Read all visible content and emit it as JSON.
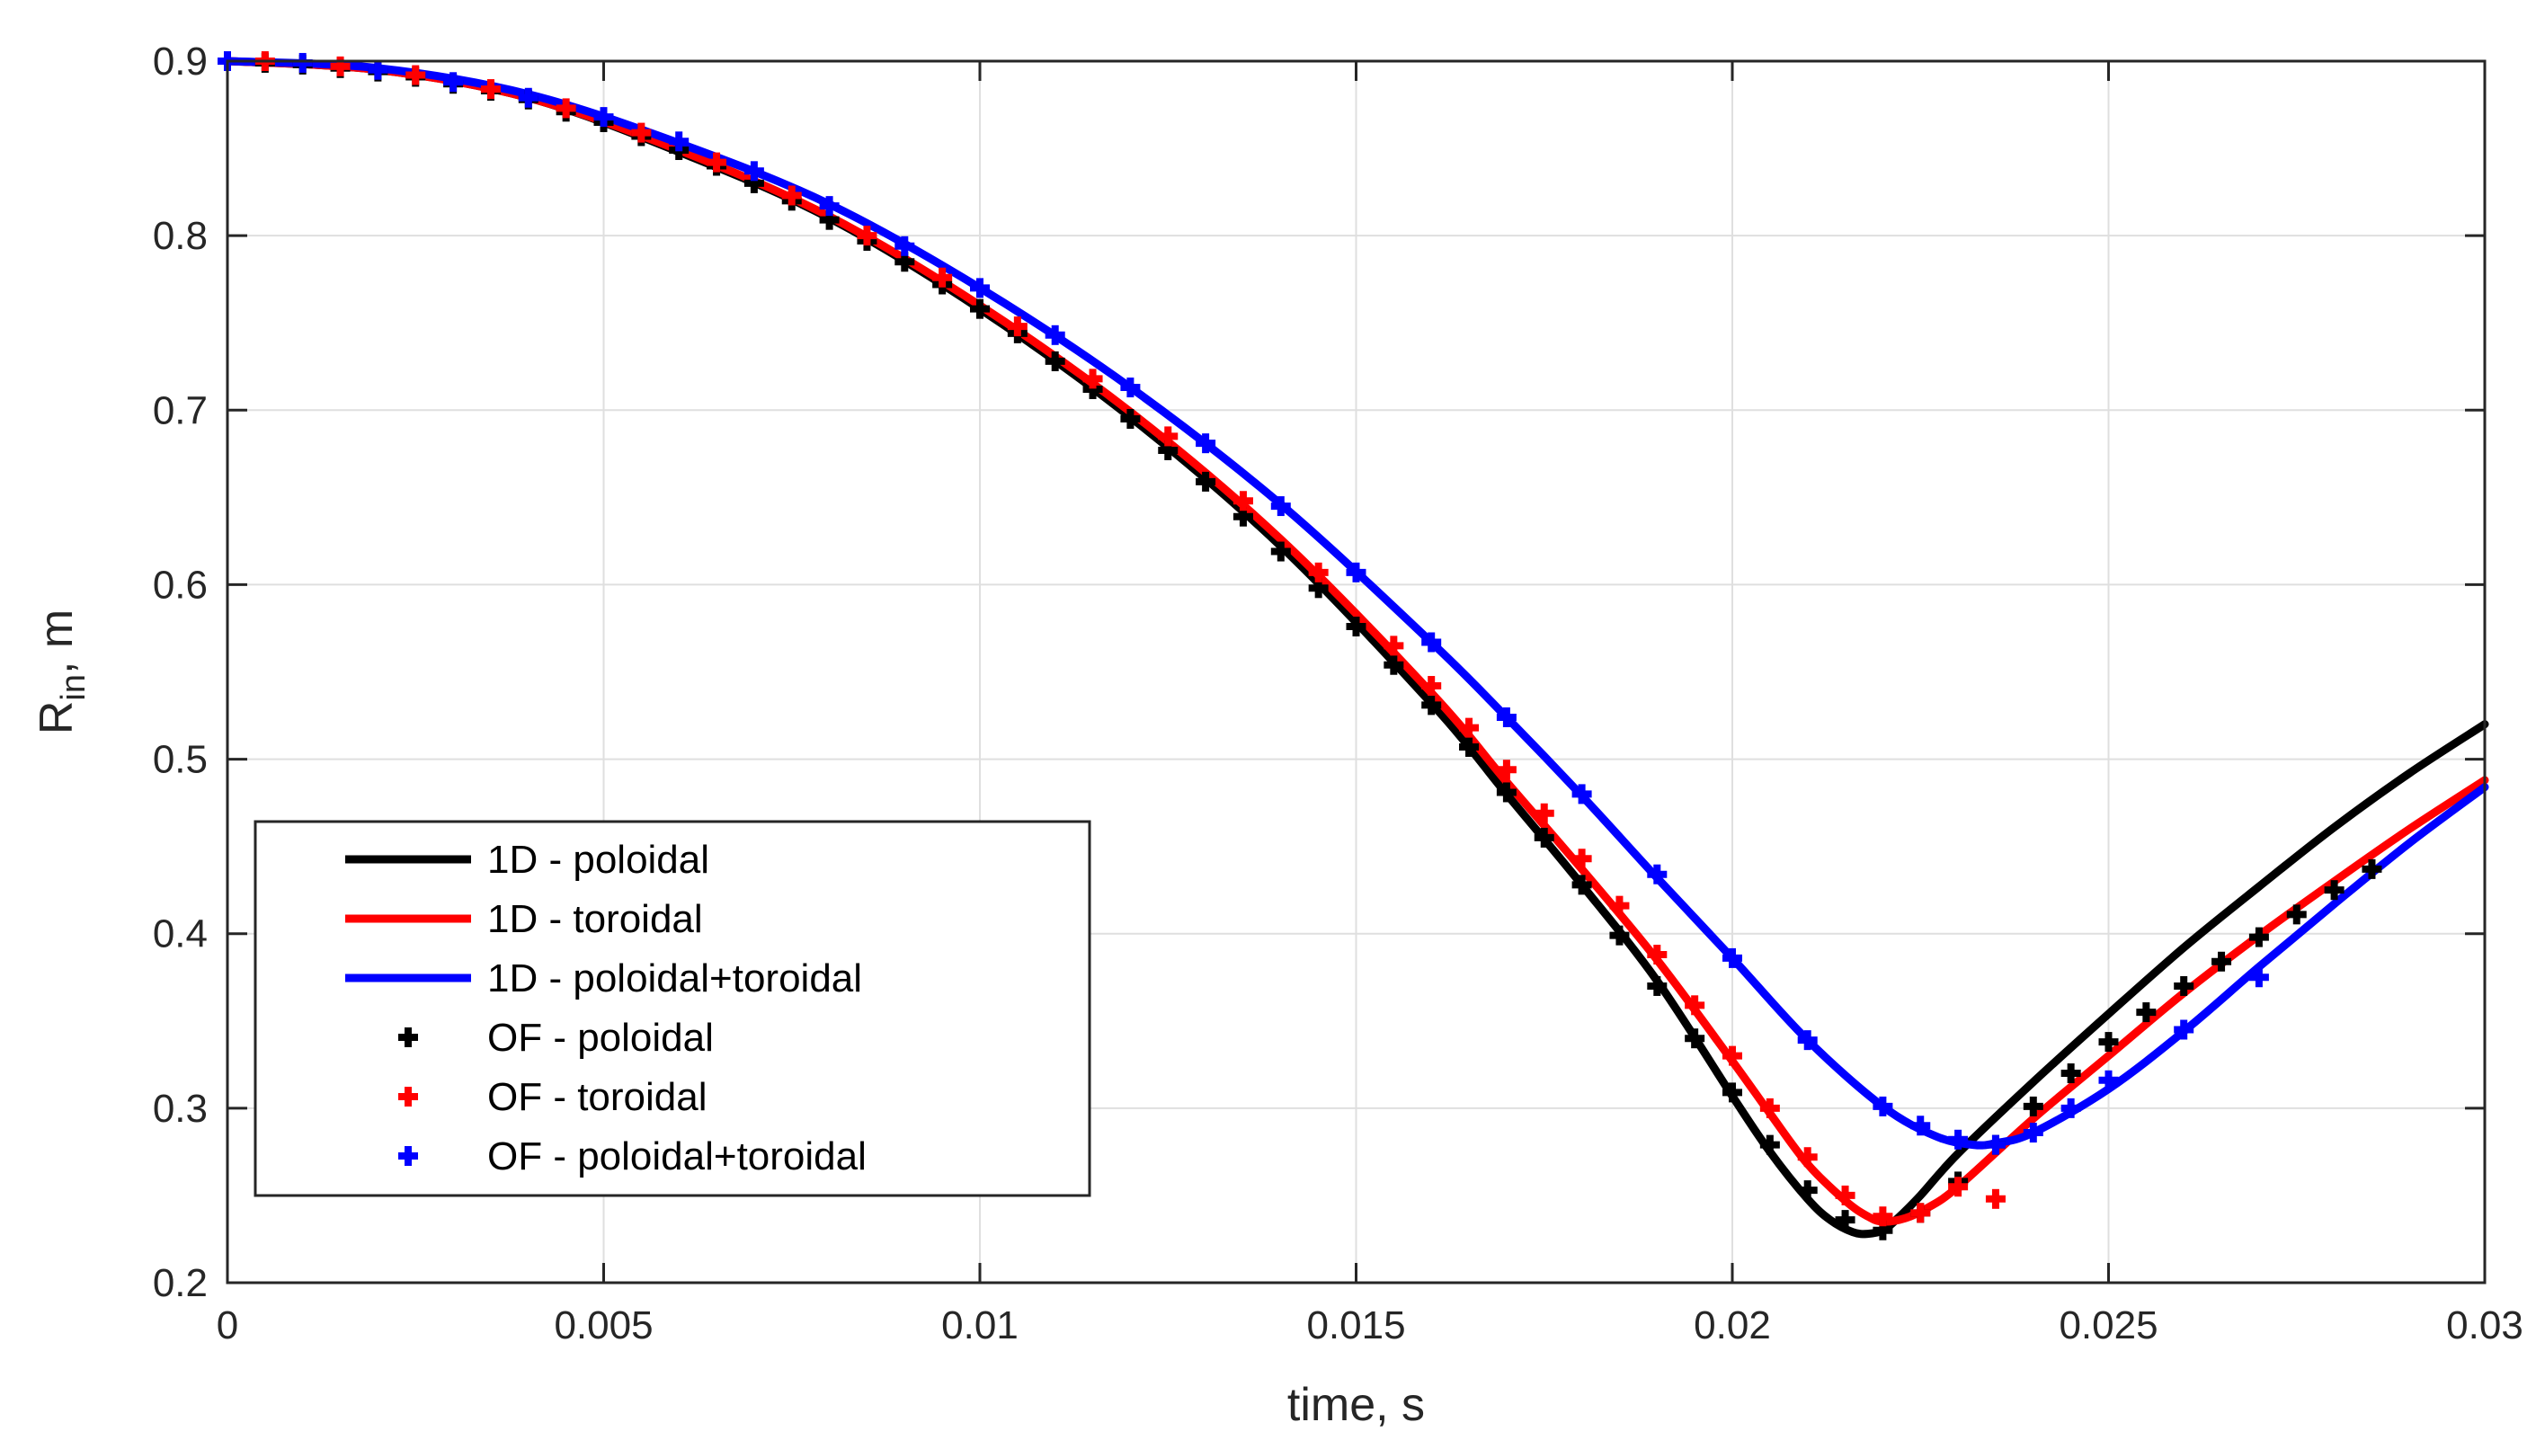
{
  "chart_data": {
    "type": "line",
    "title": "",
    "xlabel": "time, s",
    "ylabel_main": "R",
    "ylabel_sub": "in",
    "ylabel_rest": ", m",
    "xlim": [
      0,
      0.03
    ],
    "ylim": [
      0.2,
      0.9
    ],
    "grid": true,
    "legend_position": "bottom-left",
    "xticks": [
      0,
      0.005,
      0.01,
      0.015,
      0.02,
      0.025,
      0.03
    ],
    "xtick_labels": [
      "0",
      "0.005",
      "0.01",
      "0.015",
      "0.02",
      "0.025",
      "0.03"
    ],
    "yticks": [
      0.2,
      0.3,
      0.4,
      0.5,
      0.6,
      0.7,
      0.8,
      0.9
    ],
    "ytick_labels": [
      "0.2",
      "0.3",
      "0.4",
      "0.5",
      "0.6",
      "0.7",
      "0.8",
      "0.9"
    ],
    "series": [
      {
        "name": "1D - poloidal",
        "style": "line",
        "color": "#000000",
        "x": [
          0,
          0.002,
          0.004,
          0.006,
          0.008,
          0.01,
          0.012,
          0.014,
          0.016,
          0.017,
          0.018,
          0.019,
          0.02,
          0.0205,
          0.021,
          0.0213,
          0.0216,
          0.0218,
          0.022,
          0.0222,
          0.0225,
          0.023,
          0.024,
          0.025,
          0.026,
          0.027,
          0.028,
          0.029,
          0.03
        ],
        "y": [
          0.9,
          0.895,
          0.879,
          0.848,
          0.81,
          0.758,
          0.696,
          0.622,
          0.532,
          0.48,
          0.428,
          0.373,
          0.307,
          0.275,
          0.248,
          0.236,
          0.229,
          0.228,
          0.23,
          0.237,
          0.25,
          0.274,
          0.315,
          0.354,
          0.392,
          0.427,
          0.461,
          0.492,
          0.52
        ]
      },
      {
        "name": "1D - toroidal",
        "style": "line",
        "color": "#ff0000",
        "x": [
          0,
          0.002,
          0.004,
          0.006,
          0.008,
          0.01,
          0.012,
          0.014,
          0.016,
          0.017,
          0.018,
          0.019,
          0.02,
          0.0205,
          0.021,
          0.0215,
          0.0218,
          0.022,
          0.0223,
          0.0226,
          0.023,
          0.024,
          0.025,
          0.026,
          0.027,
          0.028,
          0.029,
          0.03
        ],
        "y": [
          0.9,
          0.895,
          0.879,
          0.849,
          0.811,
          0.76,
          0.699,
          0.626,
          0.538,
          0.487,
          0.437,
          0.385,
          0.327,
          0.297,
          0.268,
          0.247,
          0.238,
          0.235,
          0.237,
          0.243,
          0.255,
          0.294,
          0.33,
          0.366,
          0.399,
          0.43,
          0.46,
          0.488
        ]
      },
      {
        "name": "1D - poloidal+toroidal",
        "style": "line",
        "color": "#0000ff",
        "x": [
          0,
          0.002,
          0.004,
          0.006,
          0.008,
          0.01,
          0.012,
          0.014,
          0.016,
          0.017,
          0.018,
          0.019,
          0.02,
          0.021,
          0.022,
          0.0227,
          0.0232,
          0.0235,
          0.024,
          0.025,
          0.026,
          0.027,
          0.028,
          0.029,
          0.03
        ],
        "y": [
          0.9,
          0.896,
          0.881,
          0.853,
          0.818,
          0.77,
          0.713,
          0.646,
          0.567,
          0.524,
          0.479,
          0.432,
          0.386,
          0.339,
          0.301,
          0.284,
          0.279,
          0.28,
          0.286,
          0.311,
          0.344,
          0.381,
          0.417,
          0.452,
          0.484
        ]
      },
      {
        "name": "OF - poloidal",
        "style": "marker",
        "color": "#000000",
        "x": [
          0,
          0.0005,
          0.001,
          0.0015,
          0.002,
          0.0025,
          0.003,
          0.0035,
          0.004,
          0.0045,
          0.005,
          0.0055,
          0.006,
          0.0065,
          0.007,
          0.0075,
          0.008,
          0.0085,
          0.009,
          0.0095,
          0.01,
          0.0105,
          0.011,
          0.0115,
          0.012,
          0.0125,
          0.013,
          0.0135,
          0.014,
          0.0145,
          0.015,
          0.0155,
          0.016,
          0.0165,
          0.017,
          0.0175,
          0.018,
          0.0185,
          0.019,
          0.0195,
          0.02,
          0.0205,
          0.021,
          0.0215,
          0.022,
          0.0225,
          0.023,
          0.0235,
          0.024,
          0.0245,
          0.025,
          0.0255,
          0.026,
          0.0265,
          0.027,
          0.0275,
          0.028,
          0.0285
        ],
        "y": [
          0.9,
          0.899,
          0.898,
          0.896,
          0.894,
          0.891,
          0.887,
          0.883,
          0.878,
          0.871,
          0.865,
          0.857,
          0.849,
          0.84,
          0.83,
          0.82,
          0.809,
          0.797,
          0.785,
          0.772,
          0.758,
          0.744,
          0.728,
          0.712,
          0.695,
          0.677,
          0.659,
          0.639,
          0.619,
          0.598,
          0.576,
          0.554,
          0.531,
          0.507,
          0.481,
          0.455,
          0.428,
          0.399,
          0.37,
          0.34,
          0.309,
          0.279,
          0.253,
          0.236,
          0.23,
          0.24,
          0.258,
          0.279,
          0.301,
          0.32,
          0.338,
          0.355,
          0.37,
          0.384,
          0.398,
          0.411,
          0.425,
          0.437
        ]
      },
      {
        "name": "OF - toroidal",
        "style": "marker",
        "color": "#ff0000",
        "x": [
          0.0005,
          0.0015,
          0.0025,
          0.0035,
          0.0045,
          0.0055,
          0.0065,
          0.0075,
          0.0085,
          0.0095,
          0.0105,
          0.0115,
          0.0125,
          0.0135,
          0.0145,
          0.0155,
          0.016,
          0.0165,
          0.017,
          0.0175,
          0.018,
          0.0185,
          0.019,
          0.0195,
          0.02,
          0.0205,
          0.021,
          0.0215,
          0.022,
          0.0225,
          0.023,
          0.0235
        ],
        "y": [
          0.9,
          0.897,
          0.892,
          0.884,
          0.873,
          0.859,
          0.842,
          0.823,
          0.8,
          0.776,
          0.748,
          0.718,
          0.685,
          0.648,
          0.607,
          0.565,
          0.542,
          0.518,
          0.494,
          0.469,
          0.443,
          0.416,
          0.388,
          0.359,
          0.33,
          0.3,
          0.272,
          0.25,
          0.238,
          0.24,
          0.255,
          0.248
        ]
      },
      {
        "name": "OF - poloidal+toroidal",
        "style": "marker",
        "color": "#0000ff",
        "x": [
          0,
          0.001,
          0.002,
          0.003,
          0.004,
          0.005,
          0.006,
          0.007,
          0.008,
          0.009,
          0.01,
          0.011,
          0.012,
          0.013,
          0.014,
          0.015,
          0.016,
          0.017,
          0.018,
          0.019,
          0.02,
          0.021,
          0.022,
          0.0225,
          0.023,
          0.0235,
          0.024,
          0.0245,
          0.025,
          0.026,
          0.027
        ],
        "y": [
          0.9,
          0.899,
          0.895,
          0.888,
          0.879,
          0.868,
          0.854,
          0.837,
          0.817,
          0.794,
          0.77,
          0.743,
          0.713,
          0.681,
          0.645,
          0.607,
          0.567,
          0.524,
          0.48,
          0.434,
          0.386,
          0.339,
          0.301,
          0.29,
          0.282,
          0.279,
          0.286,
          0.3,
          0.316,
          0.345,
          0.375
        ]
      }
    ]
  }
}
